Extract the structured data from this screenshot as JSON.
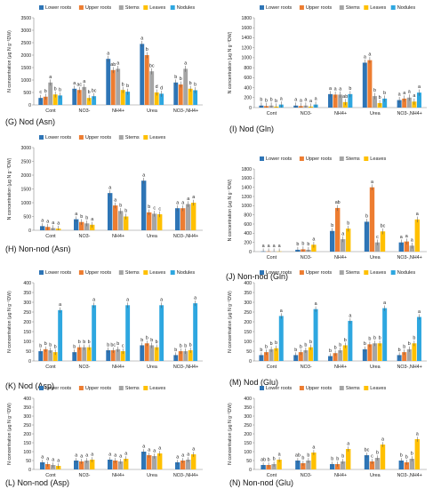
{
  "colors": {
    "lower_roots": "#2e75b6",
    "upper_roots": "#ed7d31",
    "stems": "#a5a5a5",
    "leaves": "#ffc000",
    "nodules": "#2ea7e0"
  },
  "ylabel": "N concentration (μg N g⁻¹DW)",
  "chart_data": [
    {
      "id": "G",
      "label": "(G)  Nod (Asn)",
      "type": "bar",
      "categories": [
        "Cont",
        "NO3-",
        "NH4+",
        "Urea",
        "NO3-,NH4+"
      ],
      "ylim": [
        0,
        3500
      ],
      "ticks": [
        0,
        500,
        1000,
        1500,
        2000,
        2500,
        3000,
        3500
      ],
      "legend": [
        "Lower roots",
        "Upper roots",
        "Stems",
        "Leaves",
        "Nodules"
      ],
      "series": [
        {
          "name": "Lower roots",
          "values": [
            280,
            650,
            1850,
            2450,
            900
          ],
          "letters": [
            "c",
            "a",
            "a",
            "a",
            "b"
          ]
        },
        {
          "name": "Upper roots",
          "values": [
            330,
            600,
            1400,
            2000,
            820
          ],
          "letters": [
            "b",
            "ac",
            "ab",
            "b",
            "b"
          ]
        },
        {
          "name": "Stems",
          "values": [
            900,
            720,
            1450,
            1350,
            1450
          ],
          "letters": [
            "a",
            "a",
            "a",
            "bc",
            "a"
          ]
        },
        {
          "name": "Leaves",
          "values": [
            420,
            280,
            600,
            500,
            650
          ],
          "letters": [
            "b",
            "b",
            "b",
            "d",
            "b"
          ]
        },
        {
          "name": "Nodules",
          "values": [
            380,
            350,
            530,
            450,
            590
          ],
          "letters": [
            "b",
            "bc",
            "b",
            "d",
            "b"
          ]
        }
      ]
    },
    {
      "id": "I",
      "label": "(I)  Nod (Gln)",
      "type": "bar",
      "categories": [
        "Cont",
        "NO3-",
        "NH4+",
        "Urea",
        "NO3-,NH4+"
      ],
      "ylim": [
        0,
        1800
      ],
      "ticks": [
        0,
        200,
        400,
        600,
        800,
        1000,
        1200,
        1400,
        1600,
        1800
      ],
      "legend": [
        "Lower roots",
        "Upper roots",
        "Stems",
        "Leaves",
        "Nodules"
      ],
      "series": [
        {
          "name": "Lower roots",
          "values": [
            40,
            40,
            270,
            900,
            150
          ],
          "letters": [
            "b",
            "a",
            "a",
            "a",
            "a"
          ]
        },
        {
          "name": "Upper roots",
          "values": [
            30,
            30,
            260,
            950,
            180
          ],
          "letters": [
            "b",
            "a",
            "a",
            "a",
            "a"
          ]
        },
        {
          "name": "Stems",
          "values": [
            40,
            40,
            260,
            230,
            200
          ],
          "letters": [
            "b",
            "a",
            "a",
            "b",
            "a"
          ]
        },
        {
          "name": "Leaves",
          "values": [
            20,
            20,
            110,
            90,
            120
          ],
          "letters": [
            "b",
            "a",
            "ab",
            "b",
            "a"
          ]
        },
        {
          "name": "Nodules",
          "values": [
            60,
            60,
            270,
            180,
            300
          ],
          "letters": [
            "a",
            "a",
            "b",
            "b",
            "a"
          ]
        }
      ]
    },
    {
      "id": "H",
      "label": "(H)  Non-nod (Asn)",
      "type": "bar",
      "categories": [
        "Cont",
        "NO3-",
        "NH4+",
        "Urea",
        "NO3-,NH4+"
      ],
      "ylim": [
        0,
        3000
      ],
      "ticks": [
        0,
        500,
        1000,
        1500,
        2000,
        2500,
        3000
      ],
      "legend": [
        "Lower roots",
        "Upper roots",
        "Stems",
        "Leaves"
      ],
      "series": [
        {
          "name": "Lower roots",
          "values": [
            150,
            400,
            1350,
            1800,
            800
          ],
          "letters": [
            "a",
            "a",
            "a",
            "a",
            "a"
          ]
        },
        {
          "name": "Upper roots",
          "values": [
            120,
            300,
            900,
            650,
            800
          ],
          "letters": [
            "a",
            "b",
            "a",
            "b",
            "a"
          ]
        },
        {
          "name": "Stems",
          "values": [
            80,
            250,
            700,
            600,
            950
          ],
          "letters": [
            "a",
            "b",
            "b",
            "c",
            "a"
          ]
        },
        {
          "name": "Leaves",
          "values": [
            60,
            200,
            500,
            580,
            1000
          ],
          "letters": [
            "a",
            "a",
            "b",
            "c",
            "a"
          ]
        }
      ]
    },
    {
      "id": "J",
      "label": "(J)  Non-nod (Gln)",
      "type": "bar",
      "categories": [
        "Cont",
        "NO3-",
        "NH4+",
        "Urea",
        "NO3-,NH4+"
      ],
      "ylim": [
        0,
        1800
      ],
      "ticks": [
        0,
        200,
        400,
        600,
        800,
        1000,
        1200,
        1400,
        1600,
        1800
      ],
      "legend": [
        "Lower roots",
        "Upper roots",
        "Stems",
        "Leaves"
      ],
      "series": [
        {
          "name": "Lower roots",
          "values": [
            5,
            40,
            450,
            650,
            200
          ],
          "letters": [
            "a",
            "b",
            "b",
            "b",
            "a"
          ]
        },
        {
          "name": "Upper roots",
          "values": [
            5,
            50,
            950,
            1400,
            220
          ],
          "letters": [
            "a",
            "b",
            "ab",
            "a",
            "a"
          ]
        },
        {
          "name": "Stems",
          "values": [
            5,
            40,
            270,
            200,
            130
          ],
          "letters": [
            "a",
            "b",
            "a",
            "c",
            "a"
          ]
        },
        {
          "name": "Leaves",
          "values": [
            5,
            150,
            500,
            440,
            700
          ],
          "letters": [
            "a",
            "a",
            "b",
            "bc",
            "a"
          ]
        }
      ]
    },
    {
      "id": "K",
      "label": "(K)  Nod (Asp)",
      "type": "bar",
      "categories": [
        "Cont",
        "NO3-",
        "NH4+",
        "Urea",
        "NO3-,NH4+"
      ],
      "ylim": [
        0,
        400
      ],
      "ticks": [
        0,
        50,
        100,
        150,
        200,
        250,
        300,
        350,
        400
      ],
      "legend": [
        "Lower roots",
        "Upper roots",
        "Stems",
        "Leaves",
        "Nodules"
      ],
      "series": [
        {
          "name": "Lower roots",
          "values": [
            50,
            45,
            55,
            80,
            30
          ],
          "letters": [
            "b",
            "b",
            "b",
            "b",
            "b"
          ]
        },
        {
          "name": "Upper roots",
          "values": [
            60,
            70,
            55,
            90,
            50
          ],
          "letters": [
            "b",
            "b",
            "bc",
            "b",
            "b"
          ]
        },
        {
          "name": "Stems",
          "values": [
            55,
            70,
            60,
            80,
            50
          ],
          "letters": [
            "b",
            "b",
            "b",
            "b",
            "b"
          ]
        },
        {
          "name": "Leaves",
          "values": [
            45,
            70,
            50,
            70,
            55
          ],
          "letters": [
            "b",
            "b",
            "c",
            "b",
            "b"
          ]
        },
        {
          "name": "Nodules",
          "values": [
            260,
            285,
            285,
            285,
            295
          ],
          "letters": [
            "a",
            "a",
            "a",
            "a",
            "a"
          ]
        }
      ]
    },
    {
      "id": "M",
      "label": "(M)  Nod (Glu)",
      "type": "bar",
      "categories": [
        "Cont",
        "NO3-",
        "NH4+",
        "Urea",
        "NO3-,NH4+"
      ],
      "ylim": [
        0,
        400
      ],
      "ticks": [
        0,
        50,
        100,
        150,
        200,
        250,
        300,
        350,
        400
      ],
      "legend": [
        "Lower roots",
        "Upper roots",
        "Stems",
        "Leaves",
        "Nodules"
      ],
      "series": [
        {
          "name": "Lower roots",
          "values": [
            30,
            30,
            25,
            60,
            30
          ],
          "letters": [
            "b",
            "b",
            "b",
            "b",
            "b"
          ]
        },
        {
          "name": "Upper roots",
          "values": [
            45,
            45,
            40,
            85,
            45
          ],
          "letters": [
            "b",
            "b",
            "b",
            "b",
            "b"
          ]
        },
        {
          "name": "Stems",
          "values": [
            60,
            55,
            55,
            90,
            60
          ],
          "letters": [
            "b",
            "b",
            "b",
            "b",
            "b"
          ]
        },
        {
          "name": "Leaves",
          "values": [
            65,
            70,
            80,
            90,
            90
          ],
          "letters": [
            "b",
            "b",
            "b",
            "b",
            "b"
          ]
        },
        {
          "name": "Nodules",
          "values": [
            230,
            265,
            205,
            270,
            225
          ],
          "letters": [
            "a",
            "a",
            "a",
            "a",
            "a"
          ]
        }
      ]
    },
    {
      "id": "L",
      "label": "(L)  Non-nod (Asp)",
      "type": "bar",
      "categories": [
        "Cont",
        "NO3-",
        "NH4+",
        "Urea",
        "NO3-,NH4+"
      ],
      "ylim": [
        0,
        400
      ],
      "ticks": [
        0,
        50,
        100,
        150,
        200,
        250,
        300,
        350,
        400
      ],
      "legend": [
        "Lower roots",
        "Upper roots",
        "Stems",
        "Leaves"
      ],
      "series": [
        {
          "name": "Lower roots",
          "values": [
            40,
            50,
            55,
            100,
            40
          ],
          "letters": [
            "a",
            "a",
            "a",
            "a",
            "a"
          ]
        },
        {
          "name": "Upper roots",
          "values": [
            30,
            45,
            50,
            80,
            50
          ],
          "letters": [
            "a",
            "a",
            "a",
            "a",
            "a"
          ]
        },
        {
          "name": "Stems",
          "values": [
            25,
            50,
            45,
            75,
            55
          ],
          "letters": [
            "a",
            "a",
            "a",
            "a",
            "a"
          ]
        },
        {
          "name": "Leaves",
          "values": [
            20,
            55,
            60,
            90,
            85
          ],
          "letters": [
            "a",
            "a",
            "a",
            "a",
            "a"
          ]
        }
      ]
    },
    {
      "id": "N",
      "label": "(N)  Non-nod (Glu)",
      "type": "bar",
      "categories": [
        "Cont",
        "NO3-",
        "NH4+",
        "Urea",
        "NO3-,NH4+"
      ],
      "ylim": [
        0,
        400
      ],
      "ticks": [
        0,
        50,
        100,
        150,
        200,
        250,
        300,
        350,
        400
      ],
      "legend": [
        "Lower roots",
        "Upper roots",
        "Stems",
        "Leaves"
      ],
      "series": [
        {
          "name": "Lower roots",
          "values": [
            25,
            50,
            30,
            80,
            50
          ],
          "letters": [
            "ab",
            "ab",
            "b",
            "bc",
            "b"
          ]
        },
        {
          "name": "Upper roots",
          "values": [
            25,
            35,
            30,
            45,
            40
          ],
          "letters": [
            "b",
            "b",
            "b",
            "c",
            "b"
          ]
        },
        {
          "name": "Stems",
          "values": [
            30,
            50,
            45,
            65,
            60
          ],
          "letters": [
            "b",
            "b",
            "b",
            "b",
            "b"
          ]
        },
        {
          "name": "Leaves",
          "values": [
            55,
            95,
            115,
            140,
            170
          ],
          "letters": [
            "a",
            "a",
            "a",
            "a",
            "a"
          ]
        }
      ]
    }
  ]
}
